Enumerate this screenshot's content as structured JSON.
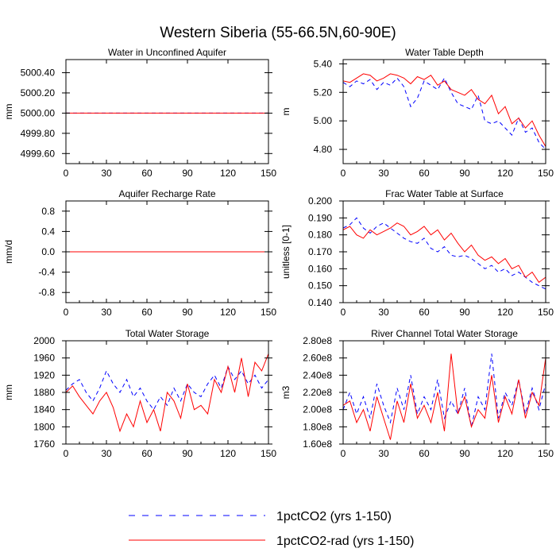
{
  "title": "Western Siberia (55-66.5N,60-90E)",
  "legend": [
    {
      "label": "1pctCO2 (yrs 1-150)",
      "color": "#0000ff",
      "dash": "dashed"
    },
    {
      "label": "1pctCO2-rad (yrs 1-150)",
      "color": "#ff0000",
      "dash": "solid"
    }
  ],
  "chart_data": [
    {
      "type": "line",
      "title": "Water in Unconfined Aquifer",
      "ylabel": "mm",
      "xlim": [
        0,
        150
      ],
      "ylim": [
        4999.5,
        5000.53
      ],
      "xticks": [
        0,
        30,
        60,
        90,
        120,
        150
      ],
      "yticks": [
        4999.6,
        4999.8,
        5000.0,
        5000.2,
        5000.4
      ],
      "ytick_labels": [
        "4999.60",
        "4999.80",
        "5000.00",
        "5000.20",
        "5000.40"
      ],
      "series": [
        {
          "name": "1pctCO2 (yrs 1-150)",
          "x": [
            0,
            150
          ],
          "y": [
            5000.0,
            5000.0
          ]
        },
        {
          "name": "1pctCO2-rad (yrs 1-150)",
          "x": [
            0,
            150
          ],
          "y": [
            5000.0,
            5000.0
          ]
        }
      ]
    },
    {
      "type": "line",
      "title": "Water Table Depth",
      "ylabel": "m",
      "xlim": [
        0,
        150
      ],
      "ylim": [
        4.7,
        5.43
      ],
      "xticks": [
        0,
        30,
        60,
        90,
        120,
        150
      ],
      "yticks": [
        4.8,
        5.0,
        5.2,
        5.4
      ],
      "ytick_labels": [
        "4.80",
        "5.00",
        "5.20",
        "5.40"
      ],
      "series": [
        {
          "name": "1pctCO2 (yrs 1-150)",
          "x": [
            0,
            5,
            10,
            15,
            20,
            25,
            30,
            35,
            40,
            45,
            50,
            55,
            60,
            65,
            70,
            75,
            80,
            85,
            90,
            95,
            100,
            105,
            110,
            115,
            120,
            125,
            130,
            135,
            140,
            145,
            150
          ],
          "y": [
            5.27,
            5.24,
            5.28,
            5.26,
            5.29,
            5.22,
            5.27,
            5.25,
            5.3,
            5.24,
            5.1,
            5.16,
            5.28,
            5.25,
            5.22,
            5.3,
            5.2,
            5.12,
            5.1,
            5.08,
            5.18,
            5.0,
            4.98,
            5.0,
            4.95,
            4.9,
            5.02,
            4.92,
            4.95,
            4.85,
            4.8
          ]
        },
        {
          "name": "1pctCO2-rad (yrs 1-150)",
          "x": [
            0,
            5,
            10,
            15,
            20,
            25,
            30,
            35,
            40,
            45,
            50,
            55,
            60,
            65,
            70,
            75,
            80,
            85,
            90,
            95,
            100,
            105,
            110,
            115,
            120,
            125,
            130,
            135,
            140,
            145,
            150
          ],
          "y": [
            5.28,
            5.27,
            5.3,
            5.33,
            5.32,
            5.28,
            5.3,
            5.33,
            5.32,
            5.3,
            5.26,
            5.31,
            5.29,
            5.32,
            5.25,
            5.28,
            5.22,
            5.2,
            5.18,
            5.22,
            5.15,
            5.12,
            5.18,
            5.05,
            5.1,
            4.98,
            5.02,
            4.95,
            5.0,
            4.9,
            4.82
          ]
        }
      ]
    },
    {
      "type": "line",
      "title": "Aquifer Recharge Rate",
      "ylabel": "mm/d",
      "xlim": [
        0,
        150
      ],
      "ylim": [
        -1.0,
        1.0
      ],
      "xticks": [
        0,
        30,
        60,
        90,
        120,
        150
      ],
      "yticks": [
        -0.8,
        -0.4,
        0.0,
        0.4,
        0.8
      ],
      "ytick_labels": [
        "-0.8",
        "-0.4",
        "0.0",
        "0.4",
        "0.8"
      ],
      "series": [
        {
          "name": "1pctCO2 (yrs 1-150)",
          "x": [
            0,
            150
          ],
          "y": [
            0.0,
            0.0
          ]
        },
        {
          "name": "1pctCO2-rad (yrs 1-150)",
          "x": [
            0,
            150
          ],
          "y": [
            0.0,
            0.0
          ]
        }
      ]
    },
    {
      "type": "line",
      "title": "Frac Water Table at Surface",
      "ylabel": "unitless [0-1]",
      "xlim": [
        0,
        150
      ],
      "ylim": [
        0.14,
        0.2
      ],
      "xticks": [
        0,
        30,
        60,
        90,
        120,
        150
      ],
      "yticks": [
        0.14,
        0.15,
        0.16,
        0.17,
        0.18,
        0.19,
        0.2
      ],
      "ytick_labels": [
        "0.140",
        "0.150",
        "0.160",
        "0.170",
        "0.180",
        "0.190",
        "0.200"
      ],
      "series": [
        {
          "name": "1pctCO2 (yrs 1-150)",
          "x": [
            0,
            5,
            10,
            15,
            20,
            25,
            30,
            35,
            40,
            45,
            50,
            55,
            60,
            65,
            70,
            75,
            80,
            85,
            90,
            95,
            100,
            105,
            110,
            115,
            120,
            125,
            130,
            135,
            140,
            145,
            150
          ],
          "y": [
            0.184,
            0.186,
            0.19,
            0.184,
            0.181,
            0.185,
            0.187,
            0.184,
            0.181,
            0.178,
            0.176,
            0.175,
            0.178,
            0.172,
            0.17,
            0.173,
            0.168,
            0.167,
            0.168,
            0.166,
            0.163,
            0.16,
            0.162,
            0.158,
            0.16,
            0.156,
            0.158,
            0.155,
            0.152,
            0.15,
            0.148
          ]
        },
        {
          "name": "1pctCO2-rad (yrs 1-150)",
          "x": [
            0,
            5,
            10,
            15,
            20,
            25,
            30,
            35,
            40,
            45,
            50,
            55,
            60,
            65,
            70,
            75,
            80,
            85,
            90,
            95,
            100,
            105,
            110,
            115,
            120,
            125,
            130,
            135,
            140,
            145,
            150
          ],
          "y": [
            0.183,
            0.185,
            0.18,
            0.178,
            0.183,
            0.18,
            0.182,
            0.184,
            0.187,
            0.185,
            0.18,
            0.182,
            0.185,
            0.18,
            0.183,
            0.177,
            0.181,
            0.175,
            0.17,
            0.174,
            0.168,
            0.165,
            0.167,
            0.163,
            0.166,
            0.16,
            0.162,
            0.155,
            0.158,
            0.152,
            0.155
          ]
        }
      ]
    },
    {
      "type": "line",
      "title": "Total Water Storage",
      "ylabel": "mm",
      "xlim": [
        0,
        150
      ],
      "ylim": [
        1760,
        2000
      ],
      "xticks": [
        0,
        30,
        60,
        90,
        120,
        150
      ],
      "yticks": [
        1760,
        1800,
        1840,
        1880,
        1920,
        1960,
        2000
      ],
      "ytick_labels": [
        "1760",
        "1800",
        "1840",
        "1880",
        "1920",
        "1960",
        "2000"
      ],
      "series": [
        {
          "name": "1pctCO2 (yrs 1-150)",
          "x": [
            0,
            5,
            10,
            15,
            20,
            25,
            30,
            35,
            40,
            45,
            50,
            55,
            60,
            65,
            70,
            75,
            80,
            85,
            90,
            95,
            100,
            105,
            110,
            115,
            120,
            125,
            130,
            135,
            140,
            145,
            150
          ],
          "y": [
            1885,
            1900,
            1910,
            1880,
            1860,
            1890,
            1930,
            1900,
            1880,
            1910,
            1870,
            1890,
            1860,
            1840,
            1870,
            1850,
            1890,
            1860,
            1900,
            1880,
            1870,
            1900,
            1920,
            1890,
            1940,
            1910,
            1930,
            1900,
            1920,
            1890,
            1910
          ]
        },
        {
          "name": "1pctCO2-rad (yrs 1-150)",
          "x": [
            0,
            5,
            10,
            15,
            20,
            25,
            30,
            35,
            40,
            45,
            50,
            55,
            60,
            65,
            70,
            75,
            80,
            85,
            90,
            95,
            100,
            105,
            110,
            115,
            120,
            125,
            130,
            135,
            140,
            145,
            150
          ],
          "y": [
            1880,
            1895,
            1870,
            1850,
            1830,
            1860,
            1880,
            1845,
            1790,
            1830,
            1800,
            1860,
            1810,
            1840,
            1790,
            1880,
            1860,
            1820,
            1900,
            1840,
            1850,
            1830,
            1910,
            1880,
            1940,
            1880,
            1960,
            1870,
            1950,
            1930,
            1970
          ]
        }
      ]
    },
    {
      "type": "line",
      "title": "River Channel Total Water Storage",
      "ylabel": "m3",
      "xlim": [
        0,
        150
      ],
      "ylim": [
        160000000,
        280000000
      ],
      "xticks": [
        0,
        30,
        60,
        90,
        120,
        150
      ],
      "yticks": [
        160000000,
        180000000,
        200000000,
        220000000,
        240000000,
        260000000,
        280000000
      ],
      "ytick_labels": [
        "1.60e8",
        "1.80e8",
        "2.00e8",
        "2.20e8",
        "2.40e8",
        "2.60e8",
        "2.80e8"
      ],
      "series": [
        {
          "name": "1pctCO2 (yrs 1-150)",
          "x": [
            0,
            5,
            10,
            15,
            20,
            25,
            30,
            35,
            40,
            45,
            50,
            55,
            60,
            65,
            70,
            75,
            80,
            85,
            90,
            95,
            100,
            105,
            110,
            115,
            120,
            125,
            130,
            135,
            140,
            145,
            150
          ],
          "y": [
            200000000,
            220000000,
            195000000,
            215000000,
            190000000,
            230000000,
            205000000,
            185000000,
            225000000,
            200000000,
            240000000,
            195000000,
            215000000,
            200000000,
            235000000,
            190000000,
            210000000,
            195000000,
            225000000,
            180000000,
            215000000,
            200000000,
            265000000,
            190000000,
            220000000,
            205000000,
            235000000,
            195000000,
            225000000,
            200000000,
            230000000
          ]
        },
        {
          "name": "1pctCO2-rad (yrs 1-150)",
          "x": [
            0,
            5,
            10,
            15,
            20,
            25,
            30,
            35,
            40,
            45,
            50,
            55,
            60,
            65,
            70,
            75,
            80,
            85,
            90,
            95,
            100,
            105,
            110,
            115,
            120,
            125,
            130,
            135,
            140,
            145,
            150
          ],
          "y": [
            205000000,
            210000000,
            185000000,
            200000000,
            175000000,
            215000000,
            190000000,
            165000000,
            210000000,
            185000000,
            230000000,
            190000000,
            205000000,
            185000000,
            220000000,
            175000000,
            265000000,
            195000000,
            215000000,
            180000000,
            200000000,
            190000000,
            240000000,
            185000000,
            215000000,
            195000000,
            235000000,
            190000000,
            220000000,
            205000000,
            260000000
          ]
        }
      ]
    }
  ]
}
